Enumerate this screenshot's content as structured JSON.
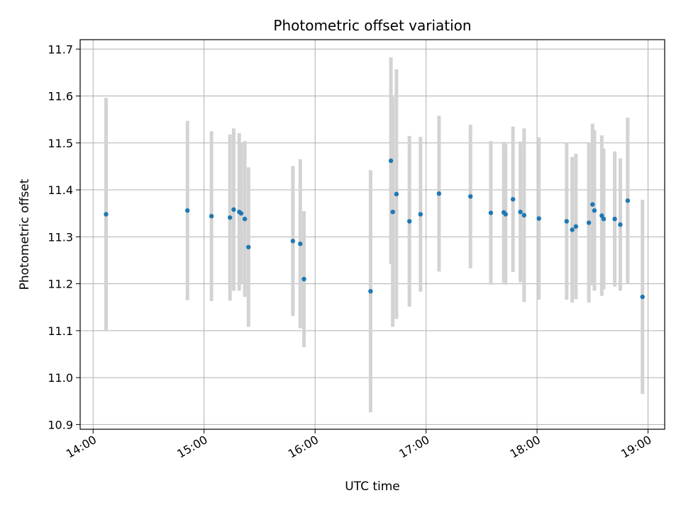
{
  "chart_data": {
    "type": "scatter",
    "title": "Photometric offset variation",
    "xlabel": "UTC time",
    "ylabel": "Photometric offset",
    "grid": true,
    "xlim": [
      "13:53",
      "19:09"
    ],
    "ylim": [
      10.89,
      11.72
    ],
    "x_ticks": [
      "14:00",
      "15:00",
      "16:00",
      "17:00",
      "18:00",
      "19:00"
    ],
    "y_ticks": [
      10.9,
      11.0,
      11.1,
      11.2,
      11.3,
      11.4,
      11.5,
      11.6,
      11.7
    ],
    "marker_color": "#1f77b4",
    "errorbar_color": "#d3d3d3",
    "points": [
      {
        "x": "14:07",
        "y": 11.348,
        "yerr": 0.248
      },
      {
        "x": "14:51",
        "y": 11.356,
        "yerr": 0.191
      },
      {
        "x": "15:04",
        "y": 11.344,
        "yerr": 0.181
      },
      {
        "x": "15:14",
        "y": 11.341,
        "yerr": 0.177
      },
      {
        "x": "15:16",
        "y": 11.358,
        "yerr": 0.173
      },
      {
        "x": "15:19",
        "y": 11.353,
        "yerr": 0.168
      },
      {
        "x": "15:20",
        "y": 11.35,
        "yerr": 0.15
      },
      {
        "x": "15:22",
        "y": 11.338,
        "yerr": 0.166
      },
      {
        "x": "15:24",
        "y": 11.278,
        "yerr": 0.17
      },
      {
        "x": "15:48",
        "y": 11.291,
        "yerr": 0.16
      },
      {
        "x": "15:52",
        "y": 11.285,
        "yerr": 0.18
      },
      {
        "x": "15:54",
        "y": 11.21,
        "yerr": 0.145
      },
      {
        "x": "16:30",
        "y": 11.184,
        "yerr": 0.258
      },
      {
        "x": "16:41",
        "y": 11.462,
        "yerr": 0.22
      },
      {
        "x": "16:42",
        "y": 11.353,
        "yerr": 0.245
      },
      {
        "x": "16:44",
        "y": 11.391,
        "yerr": 0.266
      },
      {
        "x": "16:51",
        "y": 11.333,
        "yerr": 0.182
      },
      {
        "x": "16:57",
        "y": 11.348,
        "yerr": 0.165
      },
      {
        "x": "17:07",
        "y": 11.392,
        "yerr": 0.166
      },
      {
        "x": "17:24",
        "y": 11.386,
        "yerr": 0.153
      },
      {
        "x": "17:35",
        "y": 11.351,
        "yerr": 0.153
      },
      {
        "x": "17:42",
        "y": 11.352,
        "yerr": 0.15
      },
      {
        "x": "17:43",
        "y": 11.348,
        "yerr": 0.15
      },
      {
        "x": "17:47",
        "y": 11.38,
        "yerr": 0.155
      },
      {
        "x": "17:51",
        "y": 11.353,
        "yerr": 0.15
      },
      {
        "x": "17:53",
        "y": 11.346,
        "yerr": 0.185
      },
      {
        "x": "18:01",
        "y": 11.339,
        "yerr": 0.173
      },
      {
        "x": "18:16",
        "y": 11.333,
        "yerr": 0.167
      },
      {
        "x": "18:19",
        "y": 11.315,
        "yerr": 0.155
      },
      {
        "x": "18:21",
        "y": 11.322,
        "yerr": 0.155
      },
      {
        "x": "18:28",
        "y": 11.33,
        "yerr": 0.17
      },
      {
        "x": "18:30",
        "y": 11.369,
        "yerr": 0.172
      },
      {
        "x": "18:31",
        "y": 11.356,
        "yerr": 0.171
      },
      {
        "x": "18:35",
        "y": 11.345,
        "yerr": 0.171
      },
      {
        "x": "18:36",
        "y": 11.338,
        "yerr": 0.15
      },
      {
        "x": "18:42",
        "y": 11.338,
        "yerr": 0.144
      },
      {
        "x": "18:45",
        "y": 11.326,
        "yerr": 0.141
      },
      {
        "x": "18:49",
        "y": 11.377,
        "yerr": 0.177
      },
      {
        "x": "18:57",
        "y": 11.172,
        "yerr": 0.207
      }
    ]
  }
}
